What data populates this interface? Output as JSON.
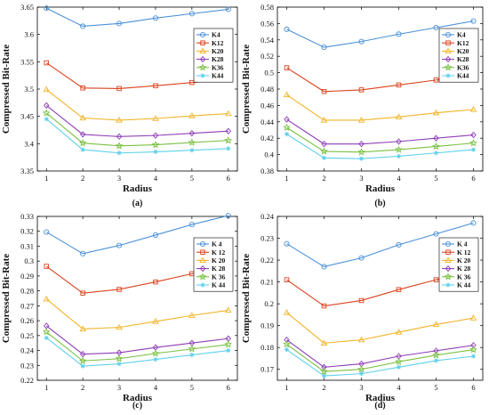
{
  "chart_data": [
    {
      "type": "line",
      "panel_label": "(a)",
      "xlabel": "Radius",
      "ylabel": "Compressed Bit-Rate",
      "x": [
        1,
        2,
        3,
        4,
        5,
        6
      ],
      "xticks": [
        "1",
        "2",
        "3",
        "4",
        "5",
        "6"
      ],
      "xlim": [
        0.75,
        6.25
      ],
      "ylim": [
        3.35,
        3.65
      ],
      "yticks": [
        "3.35",
        "3.4",
        "3.45",
        "3.5",
        "3.55",
        "3.6",
        "3.65"
      ],
      "legend_position": "top-right",
      "grid": false,
      "series": [
        {
          "name": "K4",
          "color": "#4a90d9",
          "marker": "circle",
          "values": [
            3.648,
            3.615,
            3.62,
            3.63,
            3.638,
            3.646
          ]
        },
        {
          "name": "K12",
          "color": "#d9421c",
          "marker": "square",
          "values": [
            3.548,
            3.502,
            3.501,
            3.506,
            3.512,
            3.518
          ]
        },
        {
          "name": "K20",
          "color": "#f0b428",
          "marker": "triangle",
          "values": [
            3.499,
            3.447,
            3.443,
            3.446,
            3.451,
            3.455
          ]
        },
        {
          "name": "K28",
          "color": "#8e3cb6",
          "marker": "diamond",
          "values": [
            3.47,
            3.417,
            3.413,
            3.415,
            3.419,
            3.423
          ]
        },
        {
          "name": "K36",
          "color": "#7bc043",
          "marker": "star",
          "values": [
            3.456,
            3.401,
            3.396,
            3.398,
            3.402,
            3.406
          ]
        },
        {
          "name": "K44",
          "color": "#5fd0ea",
          "marker": "asterisk",
          "values": [
            3.445,
            3.389,
            3.383,
            3.385,
            3.388,
            3.391
          ]
        }
      ]
    },
    {
      "type": "line",
      "panel_label": "(b)",
      "xlabel": "Radius",
      "ylabel": "Compressed Bit-Rate",
      "x": [
        1,
        2,
        3,
        4,
        5,
        6
      ],
      "xticks": [
        "1",
        "2",
        "3",
        "4",
        "5",
        "6"
      ],
      "xlim": [
        0.75,
        6.25
      ],
      "ylim": [
        0.38,
        0.58
      ],
      "yticks": [
        "0.38",
        "0.4",
        "0.42",
        "0.44",
        "0.46",
        "0.48",
        "0.5",
        "0.52",
        "0.54",
        "0.56",
        "0.58"
      ],
      "legend_position": "top-right",
      "grid": false,
      "series": [
        {
          "name": "K4",
          "color": "#4a90d9",
          "marker": "circle",
          "values": [
            0.553,
            0.531,
            0.538,
            0.547,
            0.555,
            0.563
          ]
        },
        {
          "name": "K12",
          "color": "#d9421c",
          "marker": "square",
          "values": [
            0.506,
            0.477,
            0.479,
            0.485,
            0.491,
            0.497
          ]
        },
        {
          "name": "K20",
          "color": "#f0b428",
          "marker": "triangle",
          "values": [
            0.473,
            0.442,
            0.442,
            0.446,
            0.451,
            0.455
          ]
        },
        {
          "name": "K28",
          "color": "#8e3cb6",
          "marker": "diamond",
          "values": [
            0.443,
            0.413,
            0.413,
            0.416,
            0.42,
            0.424
          ]
        },
        {
          "name": "K36",
          "color": "#7bc043",
          "marker": "star",
          "values": [
            0.433,
            0.404,
            0.403,
            0.406,
            0.41,
            0.414
          ]
        },
        {
          "name": "K44",
          "color": "#5fd0ea",
          "marker": "asterisk",
          "values": [
            0.425,
            0.396,
            0.395,
            0.398,
            0.402,
            0.406
          ]
        }
      ]
    },
    {
      "type": "line",
      "panel_label": "(c)",
      "xlabel": "Radius",
      "ylabel": "Compressed Bit-Rate",
      "x": [
        1,
        2,
        3,
        4,
        5,
        6
      ],
      "xticks": [
        "1",
        "2",
        "3",
        "4",
        "5",
        "6"
      ],
      "xlim": [
        0.75,
        6.25
      ],
      "ylim": [
        0.22,
        0.33
      ],
      "yticks": [
        "0.22",
        "0.23",
        "0.24",
        "0.25",
        "0.26",
        "0.27",
        "0.28",
        "0.29",
        "0.3",
        "0.31",
        "0.32",
        "0.33"
      ],
      "legend_position": "top-right",
      "grid": false,
      "series": [
        {
          "name": "K 4",
          "color": "#4a90d9",
          "marker": "circle",
          "values": [
            0.3195,
            0.305,
            0.3105,
            0.3175,
            0.3245,
            0.3305
          ]
        },
        {
          "name": "K 12",
          "color": "#d9421c",
          "marker": "square",
          "values": [
            0.2965,
            0.2785,
            0.281,
            0.286,
            0.2915,
            0.2965
          ]
        },
        {
          "name": "K 20",
          "color": "#f0b428",
          "marker": "triangle",
          "values": [
            0.2745,
            0.2545,
            0.2555,
            0.2595,
            0.2635,
            0.267
          ]
        },
        {
          "name": "K 28",
          "color": "#8e3cb6",
          "marker": "diamond",
          "values": [
            0.2565,
            0.2375,
            0.2385,
            0.242,
            0.245,
            0.248
          ]
        },
        {
          "name": "K 36",
          "color": "#7bc043",
          "marker": "star",
          "values": [
            0.2525,
            0.233,
            0.2345,
            0.238,
            0.241,
            0.244
          ]
        },
        {
          "name": "K 44",
          "color": "#5fd0ea",
          "marker": "asterisk",
          "values": [
            0.2485,
            0.2295,
            0.231,
            0.234,
            0.237,
            0.24
          ]
        }
      ]
    },
    {
      "type": "line",
      "panel_label": "(d)",
      "xlabel": "Radius",
      "ylabel": "Compressed Bit-Rate",
      "x": [
        1,
        2,
        3,
        4,
        5,
        6
      ],
      "xticks": [
        "1",
        "2",
        "3",
        "4",
        "5",
        "6"
      ],
      "xlim": [
        0.75,
        6.25
      ],
      "ylim": [
        0.165,
        0.24
      ],
      "yticks": [
        "0.17",
        "0.18",
        "0.19",
        "0.2",
        "0.21",
        "0.22",
        "0.23",
        "0.24"
      ],
      "legend_position": "top-right",
      "grid": false,
      "series": [
        {
          "name": "K 4",
          "color": "#4a90d9",
          "marker": "circle",
          "values": [
            0.2275,
            0.217,
            0.221,
            0.227,
            0.232,
            0.237
          ]
        },
        {
          "name": "K 12",
          "color": "#d9421c",
          "marker": "square",
          "values": [
            0.211,
            0.199,
            0.2015,
            0.2065,
            0.211,
            0.215
          ]
        },
        {
          "name": "K 20",
          "color": "#f0b428",
          "marker": "triangle",
          "values": [
            0.196,
            0.182,
            0.1835,
            0.187,
            0.1905,
            0.1935
          ]
        },
        {
          "name": "K 28",
          "color": "#8e3cb6",
          "marker": "diamond",
          "values": [
            0.1835,
            0.171,
            0.1725,
            0.176,
            0.1785,
            0.181
          ]
        },
        {
          "name": "K 36",
          "color": "#7bc043",
          "marker": "star",
          "values": [
            0.1815,
            0.169,
            0.17,
            0.1735,
            0.1765,
            0.179
          ]
        },
        {
          "name": "K 44",
          "color": "#5fd0ea",
          "marker": "asterisk",
          "values": [
            0.179,
            0.167,
            0.168,
            0.171,
            0.174,
            0.176
          ]
        }
      ]
    }
  ]
}
